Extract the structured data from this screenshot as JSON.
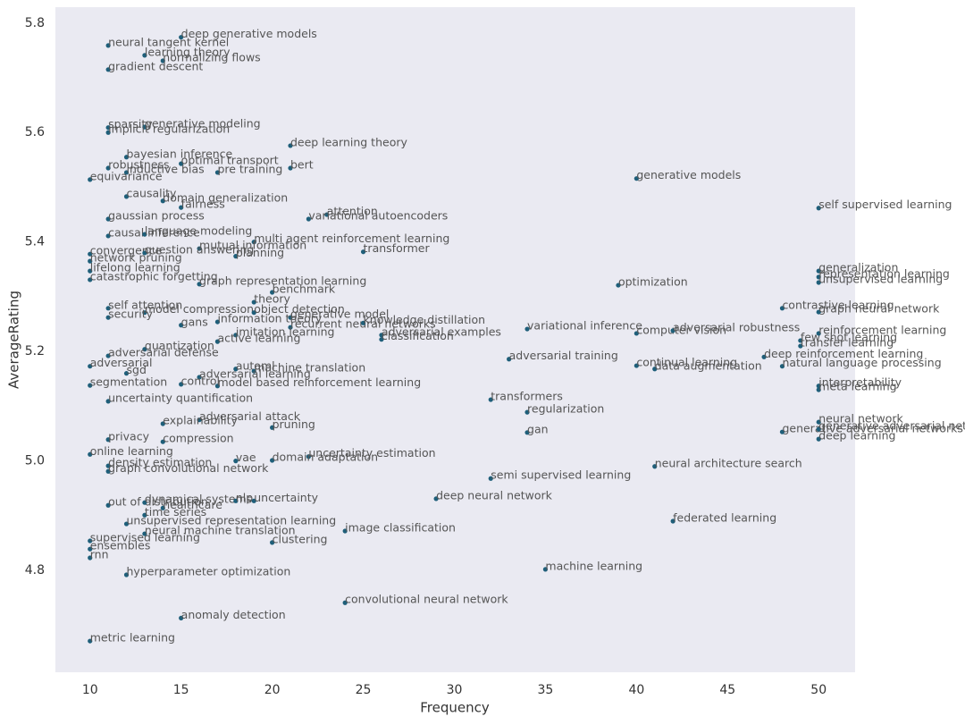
{
  "chart_data": {
    "type": "scatter",
    "x_label": "Frequency",
    "y_label": "AverageRating",
    "xlim": [
      8.1,
      52
    ],
    "ylim": [
      4.614,
      5.829
    ],
    "xticks": [
      10,
      15,
      20,
      25,
      30,
      35,
      40,
      45,
      50
    ],
    "yticks": [
      4.8,
      {
        "value": 5,
        "label": "5.0"
      },
      5.2,
      5.4,
      5.6,
      5.8
    ],
    "grid": false,
    "color": "#1f5f7a",
    "background": "#eaeaf2",
    "labels": [
      "deep generative models",
      "neural tangent kernel",
      "learning theory",
      "normalizing flows",
      "gradient descent",
      "sparsity",
      "generative modeling",
      "implicit regularization",
      "deep learning theory",
      "bayesian inference",
      "robustness",
      "optimal transport",
      "inductive bias",
      "bert",
      "pre training",
      "equivariance",
      "generative models",
      "causality",
      "domain generalization",
      "fairness",
      "self supervised learning",
      "attention",
      "variational autoencoders",
      "gaussian process",
      "causal inference",
      "language modeling",
      "multi agent reinforcement learning",
      "mutual information",
      "transformer",
      "convergence",
      "question answering",
      "planning",
      "network pruning",
      "lifelong learning",
      "catastrophic forgetting",
      "graph representation learning",
      "benchmark",
      "generalization",
      "representation learning",
      "unsupervised learning",
      "optimization",
      "theory",
      "contrastive learning",
      "self attention",
      "model compression",
      "graph neural network",
      "security",
      "object detection",
      "generative model",
      "information theory",
      "gans",
      "recurrent neural networks",
      "knowledge distillation",
      "variational inference",
      "computer vision",
      "adversarial robustness",
      "imitation learning",
      "adversarial examples",
      "classification",
      "active learning",
      "quantization",
      "few shot learning",
      "transfer learning",
      "reinforcement learning",
      "deep reinforcement learning",
      "adversarial defense",
      "adversarial training",
      "adversarial",
      "continual learning",
      "data augmentation",
      "natural language processing",
      "automl",
      "machine translation",
      "adversarial learning",
      "sgd",
      "model based reinforcement learning",
      "segmentation",
      "control",
      "interpretability",
      "meta learning",
      "transformers",
      "uncertainty quantification",
      "regularization",
      "neural network",
      "adversarial attack",
      "explainability",
      "pruning",
      "generative adversarial networks",
      "generative adversarial network",
      "gan",
      "deep learning",
      "privacy",
      "compression",
      "online learning",
      "uncertainty estimation",
      "domain adaptation",
      "vae",
      "density estimation",
      "graph convolutional network",
      "neural architecture search",
      "semi supervised learning",
      "deep neural network",
      "out of distribution",
      "dynamical systems",
      "nlp",
      "uncertainty",
      "healthcare",
      "time series",
      "federated learning",
      "unsupervised representation learning",
      "image classification",
      "neural machine translation",
      "supervised learning",
      "clustering",
      "ensembles",
      "rnn",
      "machine learning",
      "hyperparameter optimization",
      "convolutional neural network",
      "anomaly detection",
      "metric learning"
    ],
    "x": [
      15,
      11,
      13,
      14,
      11,
      11,
      13,
      11,
      21,
      12,
      11,
      15,
      12,
      21,
      17,
      10,
      40,
      12,
      14,
      15,
      50,
      23,
      22,
      11,
      11,
      13,
      19,
      16,
      25,
      10,
      13,
      18,
      10,
      10,
      10,
      16,
      20,
      50,
      50,
      50,
      39,
      19,
      48,
      11,
      13,
      50,
      11,
      19,
      21,
      17,
      15,
      21,
      25,
      34,
      40,
      42,
      18,
      26,
      26,
      17,
      13,
      49,
      49,
      50,
      47,
      11,
      33,
      10,
      40,
      41,
      48,
      18,
      19,
      16,
      12,
      17,
      10,
      15,
      50,
      50,
      32,
      11,
      34,
      50,
      16,
      14,
      20,
      48,
      50,
      34,
      50,
      11,
      14,
      10,
      22,
      20,
      18,
      11,
      11,
      41,
      32,
      29,
      11,
      13,
      18,
      19,
      14,
      13,
      42,
      12,
      24,
      13,
      10,
      20,
      10,
      10,
      35,
      12,
      24,
      15,
      10
    ],
    "values": [
      5.774,
      5.759,
      5.741,
      5.731,
      5.715,
      5.609,
      5.61,
      5.6,
      5.576,
      5.555,
      5.535,
      5.543,
      5.527,
      5.535,
      5.527,
      5.514,
      5.516,
      5.483,
      5.475,
      5.463,
      5.462,
      5.45,
      5.442,
      5.442,
      5.411,
      5.414,
      5.4,
      5.388,
      5.382,
      5.378,
      5.38,
      5.374,
      5.365,
      5.347,
      5.331,
      5.323,
      5.308,
      5.347,
      5.336,
      5.326,
      5.321,
      5.29,
      5.279,
      5.279,
      5.271,
      5.272,
      5.262,
      5.271,
      5.262,
      5.254,
      5.248,
      5.244,
      5.252,
      5.241,
      5.233,
      5.238,
      5.23,
      5.23,
      5.222,
      5.218,
      5.204,
      5.22,
      5.21,
      5.233,
      5.19,
      5.192,
      5.186,
      5.173,
      5.174,
      5.168,
      5.173,
      5.168,
      5.164,
      5.153,
      5.16,
      5.137,
      5.138,
      5.14,
      5.137,
      5.13,
      5.112,
      5.109,
      5.089,
      5.071,
      5.075,
      5.068,
      5.061,
      5.053,
      5.058,
      5.052,
      5.04,
      5.039,
      5.035,
      5.012,
      5.008,
      5.001,
      5.0,
      4.991,
      4.981,
      4.99,
      4.968,
      4.931,
      4.919,
      4.924,
      4.927,
      4.927,
      4.914,
      4.901,
      4.89,
      4.885,
      4.872,
      4.867,
      4.854,
      4.851,
      4.839,
      4.823,
      4.802,
      4.792,
      4.741,
      4.713,
      4.671
    ]
  }
}
